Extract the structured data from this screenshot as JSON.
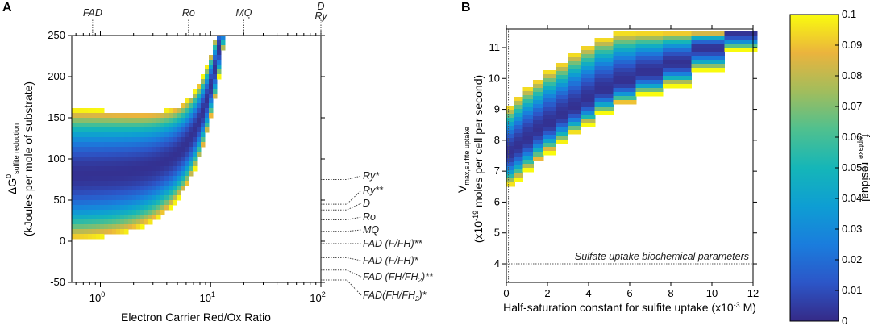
{
  "chart_data": [
    {
      "panel": "A",
      "type": "heatmap",
      "xlabel": "Electron Carrier Red/Ox Ratio",
      "xscale": "log",
      "xlim": [
        0.55,
        100
      ],
      "ylim": [
        -50,
        250
      ],
      "ylabel_main": "ΔG",
      "ylabel_sup": "0",
      "ylabel_sub": "sulfite reduction",
      "ylabel_line2": "(kJoules per mole of substrate)",
      "xticks": [
        {
          "v": 1,
          "base": "10",
          "exp": "0"
        },
        {
          "v": 10,
          "base": "10",
          "exp": "1"
        },
        {
          "v": 100,
          "base": "10",
          "exp": "2"
        }
      ],
      "yticks": [
        "250",
        "200",
        "150",
        "100",
        "50",
        "0",
        "-50"
      ],
      "yticks_values": [
        250,
        200,
        150,
        100,
        50,
        0,
        -50
      ],
      "top_markers": [
        {
          "label": "FAD",
          "x": 0.85
        },
        {
          "label": "Ro",
          "x": 6.3
        },
        {
          "label": "MQ",
          "x": 20
        },
        {
          "label": "D",
          "label2": "Ry",
          "x": 100
        }
      ],
      "right_markers": [
        {
          "label": "Ry*",
          "y": 75
        },
        {
          "label": "Ry**",
          "y": 45
        },
        {
          "label": "D",
          "y": 38
        },
        {
          "label": "Ro",
          "y": 26
        },
        {
          "label": "MQ",
          "y": 12
        },
        {
          "label": "FAD (F/FH)**",
          "y": -3
        },
        {
          "label": "FAD (F/FH)*",
          "y": -20
        },
        {
          "label": "FAD (FH/FH",
          "sub": "2",
          "tail": ")**",
          "y": -35
        },
        {
          "label": "FAD(FH/FH",
          "sub": "2",
          "tail": ")*",
          "y": -47
        }
      ],
      "band_model": {
        "center_at_low_x": 80,
        "knee_x": 12,
        "min_fraction": 0.0,
        "max_fraction": 0.1
      }
    },
    {
      "panel": "B",
      "type": "heatmap",
      "xlabel": "Half-saturation constant for sulfite uptake (x10",
      "xlabel_sup": "-3",
      "xlabel_tail": " M)",
      "xlim": [
        0,
        12
      ],
      "ylim": [
        3.4,
        11.6
      ],
      "xticks": [
        "0",
        "2",
        "4",
        "6",
        "8",
        "10",
        "12"
      ],
      "xticks_values": [
        0,
        2,
        4,
        6,
        8,
        10,
        12
      ],
      "yticks": [
        "11",
        "10",
        "9",
        "8",
        "7",
        "6",
        "5",
        "4"
      ],
      "yticks_values": [
        11,
        10,
        9,
        8,
        7,
        6,
        5,
        4
      ],
      "ylabel_main": "V",
      "ylabel_sub": "max,sulfite uptake",
      "ylabel_line2a": "(x10",
      "ylabel_line2sup": "-19",
      "ylabel_line2b": " moles per cell per second)",
      "annotation": "Sulfate uptake biochemical parameters",
      "reference": {
        "x": 0.1,
        "y": 4.0
      },
      "column_edges": [
        0.0,
        0.4,
        0.8,
        1.3,
        1.8,
        2.4,
        3.0,
        3.6,
        4.3,
        5.2,
        6.3,
        7.6,
        9.0,
        10.6
      ],
      "column_ranges": [
        [
          6.55,
          9.1
        ],
        [
          6.75,
          9.4
        ],
        [
          7.05,
          9.7
        ],
        [
          7.35,
          9.95
        ],
        [
          7.65,
          10.25
        ],
        [
          7.95,
          10.5
        ],
        [
          8.25,
          10.8
        ],
        [
          8.55,
          11.05
        ],
        [
          8.9,
          11.3
        ],
        [
          9.2,
          11.5
        ],
        [
          9.5,
          11.5
        ],
        [
          9.8,
          11.5
        ],
        [
          10.3,
          11.5
        ],
        [
          10.95,
          11.5
        ]
      ],
      "column_slopes": [
        0.5,
        0.5,
        0.5,
        0.45,
        0.45,
        0.45,
        0.4,
        0.4,
        0.35,
        0.3,
        0.28,
        0.24,
        0.2,
        0.15
      ],
      "column_centers": [
        7.6,
        7.8,
        8.05,
        8.3,
        8.55,
        8.8,
        9.05,
        9.3,
        9.6,
        9.9,
        10.2,
        10.5,
        11.0,
        11.5
      ]
    }
  ],
  "colorbar": {
    "label_main": "f",
    "label_sub": "uptake",
    "label_tail": " residual",
    "ticks": [
      "0.1",
      "0.09",
      "0.08",
      "0.07",
      "0.06",
      "0.05",
      "0.04",
      "0.03",
      "0.02",
      "0.01",
      "0"
    ],
    "ticks_values": [
      0.1,
      0.09,
      0.08,
      0.07,
      0.06,
      0.05,
      0.04,
      0.03,
      0.02,
      0.01,
      0
    ],
    "range": [
      0,
      0.1
    ]
  }
}
